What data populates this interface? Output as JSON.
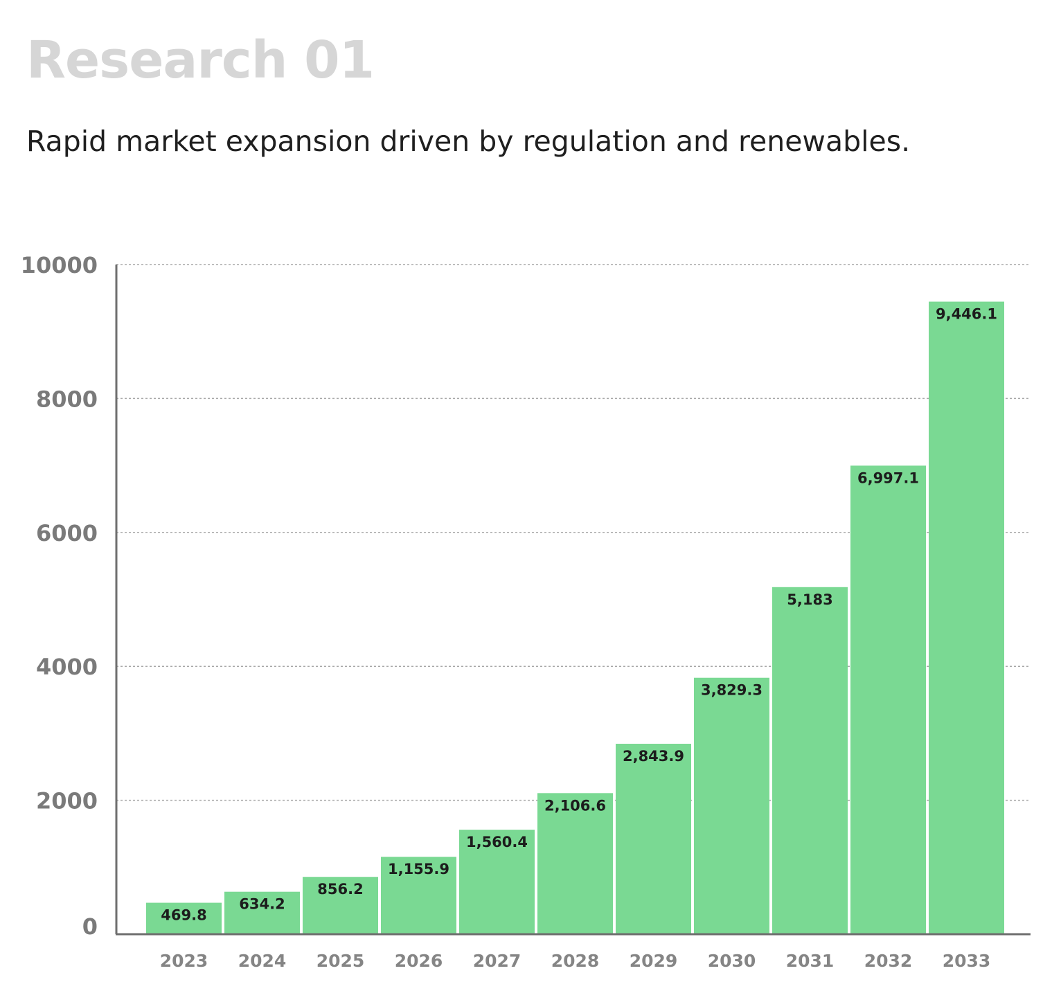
{
  "header": {
    "title": "Research 01",
    "subtitle": "Rapid market expansion driven by regulation and renewables."
  },
  "colors": {
    "bar": "#7ad993",
    "grid": "#a8a8a8",
    "axis": "#6e6e6e"
  },
  "chart_data": {
    "type": "bar",
    "title": "",
    "xlabel": "",
    "ylabel": "",
    "categories": [
      "2023",
      "2024",
      "2025",
      "2026",
      "2027",
      "2028",
      "2029",
      "2030",
      "2031",
      "2032",
      "2033"
    ],
    "values": [
      469.8,
      634.2,
      856.2,
      1155.9,
      1560.4,
      2106.6,
      2843.9,
      3829.3,
      5183,
      6997.1,
      9446.1
    ],
    "value_labels": [
      "469.8",
      "634.2",
      "856.2",
      "1,155.9",
      "1,560.4",
      "2,106.6",
      "2,843.9",
      "3,829.3",
      "5,183",
      "6,997.1",
      "9,446.1"
    ],
    "yticks": [
      0,
      2000,
      4000,
      6000,
      8000,
      10000
    ],
    "ytick_labels": [
      "0",
      "2000",
      "4000",
      "6000",
      "8000",
      "10000"
    ],
    "ylim": [
      0,
      10000
    ],
    "grid": true,
    "legend": "none"
  }
}
